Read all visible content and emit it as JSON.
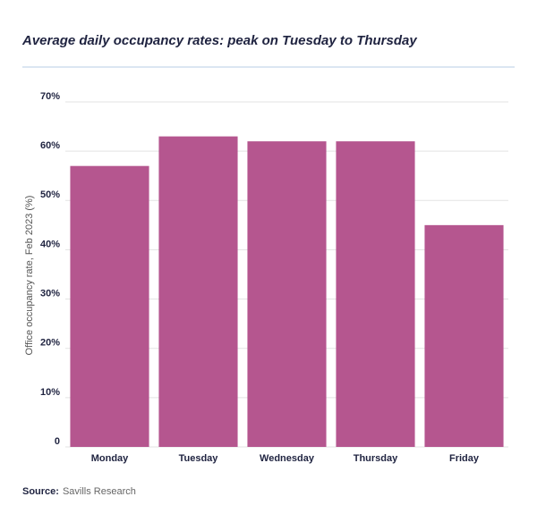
{
  "chart_data": {
    "type": "bar",
    "title": "Average daily occupancy rates: peak on Tuesday to Thursday",
    "y_label": "Office occupancy rate, Feb 2023 (%)",
    "categories": [
      "Monday",
      "Tuesday",
      "Wednesday",
      "Thursday",
      "Friday"
    ],
    "values": [
      57,
      63,
      62,
      62,
      45
    ],
    "color": "#b5568f",
    "ylim": [
      0,
      70
    ],
    "yticks": [
      0,
      {
        "value": 10,
        "label": "10%"
      },
      {
        "value": 20,
        "label": "20%"
      },
      {
        "value": 30,
        "label": "30%"
      },
      {
        "value": 40,
        "label": "40%"
      },
      {
        "value": 50,
        "label": "50%"
      },
      {
        "value": 60,
        "label": "60%"
      },
      {
        "value": 70,
        "label": "70%"
      }
    ],
    "grid": true,
    "source_label": "Source:",
    "source": "Savills Research"
  }
}
